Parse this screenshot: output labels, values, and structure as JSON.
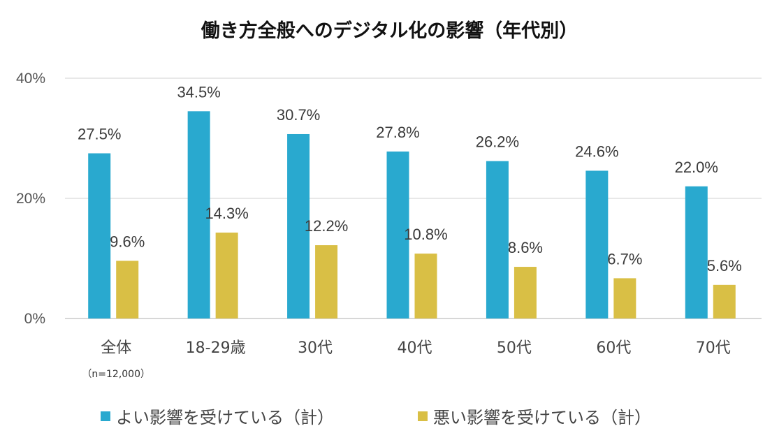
{
  "chart_data": {
    "type": "bar",
    "title": "働き方全般へのデジタル化の影響（年代別）",
    "categories": [
      "全体",
      "18-29歳",
      "30代",
      "40代",
      "50代",
      "60代",
      "70代"
    ],
    "category_note": "（n=12,000）",
    "series": [
      {
        "name": "よい影響を受けている（計）",
        "values": [
          27.5,
          34.5,
          30.7,
          27.8,
          26.2,
          24.6,
          22.0
        ],
        "color": "#29A9CF"
      },
      {
        "name": "悪い影響を受けている（計）",
        "values": [
          9.6,
          14.3,
          12.2,
          10.8,
          8.6,
          6.7,
          5.6
        ],
        "color": "#D9BF45"
      }
    ],
    "data_labels": [
      [
        "27.5%",
        "34.5%",
        "30.7%",
        "27.8%",
        "26.2%",
        "24.6%",
        "22.0%"
      ],
      [
        "9.6%",
        "14.3%",
        "12.2%",
        "10.8%",
        "8.6%",
        "6.7%",
        "5.6%"
      ]
    ],
    "y_ticks": [
      "0%",
      "20%",
      "40%"
    ],
    "ylim": [
      0,
      40
    ],
    "grid": true,
    "legend_position": "bottom"
  }
}
